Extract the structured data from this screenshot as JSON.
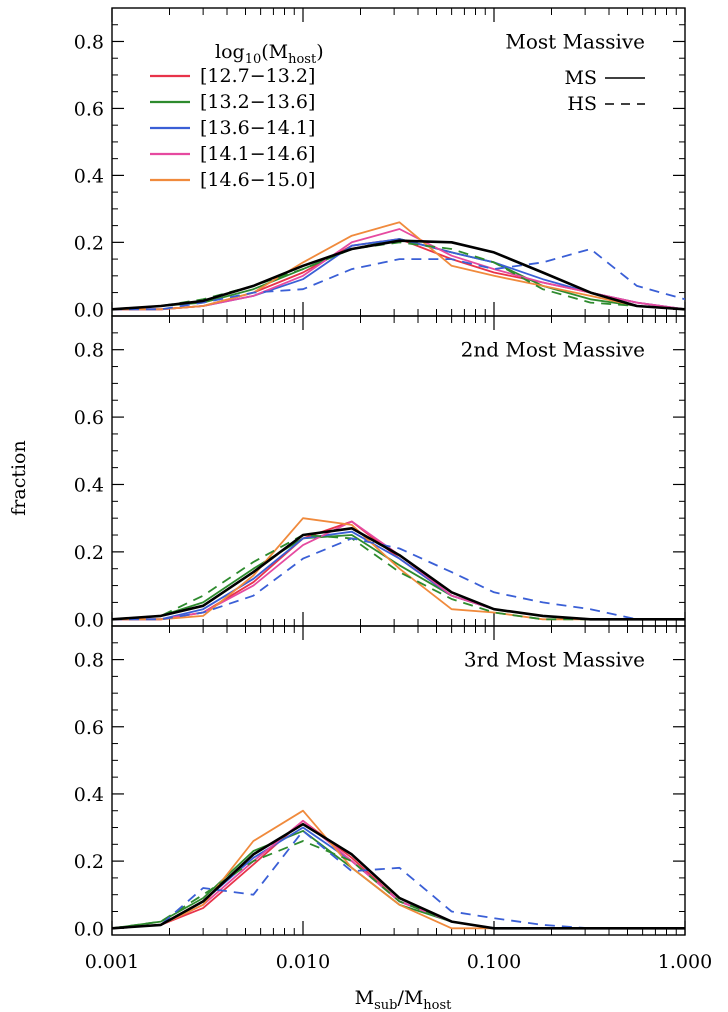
{
  "figure": {
    "ylabel": "fraction",
    "xlabel": "M_sub/M_host"
  },
  "legend": {
    "title": "log10(M_host)",
    "mass_bins": [
      {
        "label": "[12.7−13.2]",
        "color": "#e8334a"
      },
      {
        "label": "[13.2−13.6]",
        "color": "#2e8b2e"
      },
      {
        "label": "[13.6−14.1]",
        "color": "#3a5fd6"
      },
      {
        "label": "[14.1−14.6]",
        "color": "#e64aa0"
      },
      {
        "label": "[14.6−15.0]",
        "color": "#f08a3c"
      }
    ],
    "styles": [
      {
        "label": "MS",
        "dash": "solid"
      },
      {
        "label": "HS",
        "dash": "dashed"
      }
    ]
  },
  "chart_data": [
    {
      "type": "line",
      "title": "Most Massive",
      "xscale": "log",
      "xlim": [
        0.001,
        1.0
      ],
      "ylim": [
        -0.02,
        0.9
      ],
      "xticks": [
        "0.001",
        "0.010",
        "0.100",
        "1.000"
      ],
      "yticks": [
        "0.0",
        "0.2",
        "0.4",
        "0.6",
        "0.8"
      ],
      "x": [
        0.001,
        0.0018,
        0.003,
        0.0055,
        0.01,
        0.018,
        0.032,
        0.06,
        0.1,
        0.18,
        0.32,
        0.56,
        1.0
      ],
      "series": [
        {
          "name": "[12.7−13.2]",
          "style": "MS",
          "color": "#e8334a",
          "values": [
            0.0,
            0.0,
            0.01,
            0.05,
            0.11,
            0.19,
            0.21,
            0.15,
            0.11,
            0.08,
            0.05,
            0.02,
            0.0
          ]
        },
        {
          "name": "[13.2−13.6]",
          "style": "MS",
          "color": "#2e8b2e",
          "values": [
            0.0,
            0.01,
            0.02,
            0.06,
            0.12,
            0.18,
            0.21,
            0.17,
            0.14,
            0.07,
            0.03,
            0.01,
            0.0
          ]
        },
        {
          "name": "[13.6−14.1]",
          "style": "MS",
          "color": "#3a5fd6",
          "values": [
            0.0,
            0.0,
            0.01,
            0.04,
            0.09,
            0.19,
            0.21,
            0.17,
            0.14,
            0.09,
            0.05,
            0.02,
            0.0
          ]
        },
        {
          "name": "[14.1−14.6]",
          "style": "MS",
          "color": "#e64aa0",
          "values": [
            0.0,
            0.0,
            0.01,
            0.04,
            0.1,
            0.2,
            0.24,
            0.16,
            0.12,
            0.08,
            0.05,
            0.02,
            0.0
          ]
        },
        {
          "name": "[14.6−15.0]",
          "style": "MS",
          "color": "#f08a3c",
          "values": [
            0.0,
            0.0,
            0.01,
            0.05,
            0.14,
            0.22,
            0.26,
            0.13,
            0.1,
            0.07,
            0.04,
            0.01,
            0.0
          ]
        },
        {
          "name": "[13.2−13.6]",
          "style": "HS",
          "color": "#2e8b2e",
          "values": [
            0.0,
            0.01,
            0.03,
            0.07,
            0.12,
            0.18,
            0.2,
            0.18,
            0.14,
            0.06,
            0.02,
            0.01,
            0.0
          ]
        },
        {
          "name": "[13.6−14.1]",
          "style": "HS",
          "color": "#3a5fd6",
          "values": [
            0.0,
            0.0,
            0.02,
            0.05,
            0.06,
            0.12,
            0.15,
            0.15,
            0.12,
            0.14,
            0.18,
            0.07,
            0.03
          ]
        },
        {
          "name": "",
          "style": "fit",
          "color": "#000000",
          "values": [
            0.0,
            0.01,
            0.025,
            0.07,
            0.13,
            0.18,
            0.205,
            0.2,
            0.17,
            0.11,
            0.05,
            0.01,
            0.0
          ]
        }
      ]
    },
    {
      "type": "line",
      "title": "2nd Most Massive",
      "xscale": "log",
      "xlim": [
        0.001,
        1.0
      ],
      "ylim": [
        -0.02,
        0.9
      ],
      "xticks": [
        "0.001",
        "0.010",
        "0.100",
        "1.000"
      ],
      "yticks": [
        "0.0",
        "0.2",
        "0.4",
        "0.6",
        "0.8"
      ],
      "x": [
        0.001,
        0.0018,
        0.003,
        0.0055,
        0.01,
        0.018,
        0.032,
        0.06,
        0.1,
        0.18,
        0.32,
        0.56,
        1.0
      ],
      "series": [
        {
          "name": "[12.7−13.2]",
          "style": "MS",
          "color": "#e8334a",
          "values": [
            0.0,
            0.0,
            0.02,
            0.11,
            0.24,
            0.29,
            0.18,
            0.07,
            0.03,
            0.01,
            0.0,
            0.0,
            0.0
          ]
        },
        {
          "name": "[13.2−13.6]",
          "style": "MS",
          "color": "#2e8b2e",
          "values": [
            0.0,
            0.01,
            0.05,
            0.15,
            0.24,
            0.25,
            0.16,
            0.07,
            0.03,
            0.01,
            0.0,
            0.0,
            0.0
          ]
        },
        {
          "name": "[13.6−14.1]",
          "style": "MS",
          "color": "#3a5fd6",
          "values": [
            0.0,
            0.0,
            0.03,
            0.12,
            0.24,
            0.26,
            0.18,
            0.07,
            0.03,
            0.01,
            0.0,
            0.0,
            0.0
          ]
        },
        {
          "name": "[14.1−14.6]",
          "style": "MS",
          "color": "#e64aa0",
          "values": [
            0.0,
            0.0,
            0.02,
            0.1,
            0.22,
            0.29,
            0.19,
            0.07,
            0.03,
            0.01,
            0.0,
            0.0,
            0.0
          ]
        },
        {
          "name": "[14.6−15.0]",
          "style": "MS",
          "color": "#f08a3c",
          "values": [
            0.0,
            0.0,
            0.01,
            0.13,
            0.3,
            0.28,
            0.15,
            0.03,
            0.02,
            0.0,
            0.0,
            0.0,
            0.0
          ]
        },
        {
          "name": "[13.2−13.6]",
          "style": "HS",
          "color": "#2e8b2e",
          "values": [
            0.0,
            0.01,
            0.07,
            0.17,
            0.25,
            0.24,
            0.14,
            0.06,
            0.02,
            0.0,
            0.0,
            0.0,
            0.0
          ]
        },
        {
          "name": "[13.6−14.1]",
          "style": "HS",
          "color": "#3a5fd6",
          "values": [
            0.0,
            0.0,
            0.02,
            0.07,
            0.18,
            0.24,
            0.21,
            0.14,
            0.08,
            0.05,
            0.03,
            0.0,
            0.0
          ]
        },
        {
          "name": "",
          "style": "fit",
          "color": "#000000",
          "values": [
            0.0,
            0.01,
            0.04,
            0.14,
            0.25,
            0.27,
            0.19,
            0.08,
            0.03,
            0.01,
            0.0,
            0.0,
            0.0
          ]
        }
      ]
    },
    {
      "type": "line",
      "title": "3rd Most Massive",
      "xscale": "log",
      "xlim": [
        0.001,
        1.0
      ],
      "ylim": [
        -0.02,
        0.9
      ],
      "xticks": [
        "0.001",
        "0.010",
        "0.100",
        "1.000"
      ],
      "yticks": [
        "0.0",
        "0.2",
        "0.4",
        "0.6",
        "0.8"
      ],
      "x": [
        0.001,
        0.0018,
        0.003,
        0.0055,
        0.01,
        0.018,
        0.032,
        0.06,
        0.1,
        0.18,
        0.32,
        0.56,
        1.0
      ],
      "series": [
        {
          "name": "[12.7−13.2]",
          "style": "MS",
          "color": "#e8334a",
          "values": [
            0.0,
            0.01,
            0.06,
            0.19,
            0.32,
            0.21,
            0.08,
            0.02,
            0.0,
            0.0,
            0.0,
            0.0,
            0.0
          ]
        },
        {
          "name": "[13.2−13.6]",
          "style": "MS",
          "color": "#2e8b2e",
          "values": [
            0.0,
            0.02,
            0.09,
            0.23,
            0.29,
            0.18,
            0.07,
            0.02,
            0.0,
            0.0,
            0.0,
            0.0,
            0.0
          ]
        },
        {
          "name": "[13.6−14.1]",
          "style": "MS",
          "color": "#3a5fd6",
          "values": [
            0.0,
            0.01,
            0.08,
            0.21,
            0.3,
            0.2,
            0.08,
            0.02,
            0.0,
            0.0,
            0.0,
            0.0,
            0.0
          ]
        },
        {
          "name": "[14.1−14.6]",
          "style": "MS",
          "color": "#e64aa0",
          "values": [
            0.0,
            0.01,
            0.07,
            0.2,
            0.32,
            0.2,
            0.08,
            0.02,
            0.0,
            0.0,
            0.0,
            0.0,
            0.0
          ]
        },
        {
          "name": "[14.6−15.0]",
          "style": "MS",
          "color": "#f08a3c",
          "values": [
            0.0,
            0.01,
            0.07,
            0.26,
            0.35,
            0.18,
            0.07,
            0.0,
            0.0,
            0.0,
            0.0,
            0.0,
            0.0
          ]
        },
        {
          "name": "[13.2−13.6]",
          "style": "HS",
          "color": "#2e8b2e",
          "values": [
            0.0,
            0.02,
            0.1,
            0.2,
            0.26,
            0.2,
            0.08,
            0.02,
            0.0,
            0.0,
            0.0,
            0.0,
            0.0
          ]
        },
        {
          "name": "[13.6−14.1]",
          "style": "HS",
          "color": "#3a5fd6",
          "values": [
            0.0,
            0.01,
            0.12,
            0.1,
            0.29,
            0.17,
            0.18,
            0.05,
            0.03,
            0.01,
            0.0,
            0.0,
            0.0
          ]
        },
        {
          "name": "",
          "style": "fit",
          "color": "#000000",
          "values": [
            0.0,
            0.01,
            0.08,
            0.22,
            0.31,
            0.22,
            0.09,
            0.02,
            0.0,
            0.0,
            0.0,
            0.0,
            0.0
          ]
        }
      ]
    }
  ]
}
